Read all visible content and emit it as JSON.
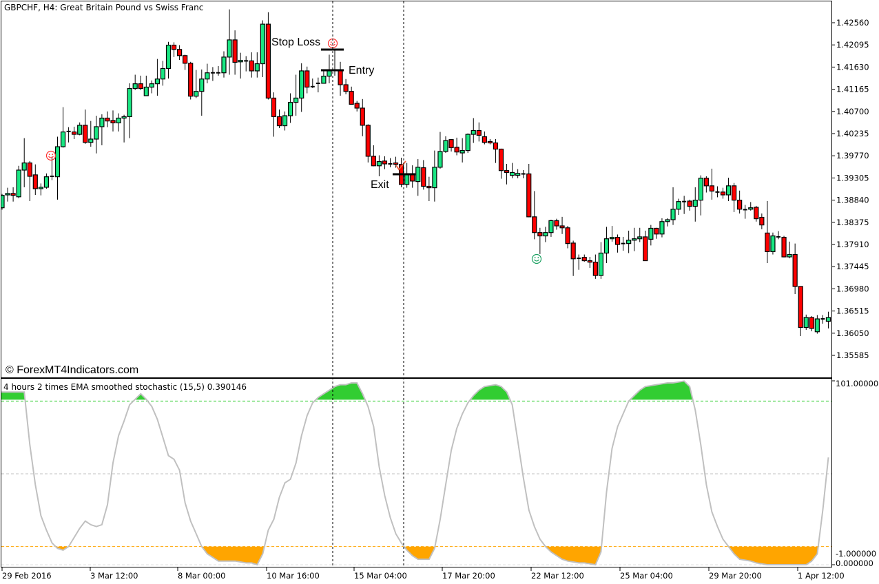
{
  "chart_data": [
    {
      "type": "candlestick",
      "title": "GBPCHF, H4:  Great Britain Pound vs Swiss Franc",
      "watermark": "© ForexMT4Indicators.com",
      "colors": {
        "bull": "#19e682",
        "bear": "#ff0000",
        "outline": "#000000"
      },
      "ylim": [
        1.3533,
        1.4304
      ],
      "y_ticks": [
        "1.42560",
        "1.42095",
        "1.41630",
        "1.41165",
        "1.40700",
        "1.40235",
        "1.39770",
        "1.39305",
        "1.38840",
        "1.38375",
        "1.37910",
        "1.37445",
        "1.36980",
        "1.36515",
        "1.36050",
        "1.35585"
      ],
      "x_ticks": [
        "29 Feb 2016",
        "3 Mar 12:00",
        "8 Mar 00:00",
        "10 Mar 16:00",
        "15 Mar 04:00",
        "17 Mar 20:00",
        "22 Mar 12:00",
        "25 Mar 04:00",
        "29 Mar 20:00",
        "1 Apr 12:00"
      ],
      "candle_fields": [
        "open",
        "high",
        "low",
        "close"
      ],
      "candles": [
        [
          1.3868,
          1.3897,
          1.3864,
          1.3894
        ],
        [
          1.3895,
          1.391,
          1.3881,
          1.3898
        ],
        [
          1.3898,
          1.3911,
          1.3881,
          1.3894
        ],
        [
          1.3891,
          1.3956,
          1.3888,
          1.3947
        ],
        [
          1.3947,
          1.4014,
          1.3911,
          1.3962
        ],
        [
          1.3962,
          1.3966,
          1.3882,
          1.3934
        ],
        [
          1.3937,
          1.3959,
          1.3895,
          1.3908
        ],
        [
          1.3908,
          1.3919,
          1.3894,
          1.3911
        ],
        [
          1.3911,
          1.394,
          1.3908,
          1.3933
        ],
        [
          1.3934,
          1.3975,
          1.3926,
          1.3934
        ],
        [
          1.3933,
          1.4017,
          1.3885,
          1.3996
        ],
        [
          1.3996,
          1.4079,
          1.3994,
          1.4027
        ],
        [
          1.4028,
          1.4037,
          1.4005,
          1.4028
        ],
        [
          1.4027,
          1.4038,
          1.4012,
          1.4022
        ],
        [
          1.4022,
          1.4047,
          1.402,
          1.4041
        ],
        [
          1.4041,
          1.4074,
          1.4002,
          1.4005
        ],
        [
          1.4005,
          1.405,
          1.3996,
          1.4012
        ],
        [
          1.4012,
          1.4061,
          1.3982,
          1.4038
        ],
        [
          1.4038,
          1.4064,
          1.3999,
          1.4056
        ],
        [
          1.4056,
          1.407,
          1.4037,
          1.405
        ],
        [
          1.4051,
          1.4072,
          1.4028,
          1.4046
        ],
        [
          1.4046,
          1.4066,
          1.4028,
          1.4056
        ],
        [
          1.4056,
          1.4063,
          1.4005,
          1.4059
        ],
        [
          1.4059,
          1.4129,
          1.4014,
          1.4118
        ],
        [
          1.4118,
          1.4147,
          1.4115,
          1.4128
        ],
        [
          1.4128,
          1.4145,
          1.4115,
          1.4118
        ],
        [
          1.4103,
          1.4145,
          1.4103,
          1.4121
        ],
        [
          1.4121,
          1.4135,
          1.4108,
          1.4128
        ],
        [
          1.4128,
          1.418,
          1.4103,
          1.4138
        ],
        [
          1.4138,
          1.4176,
          1.4124,
          1.416
        ],
        [
          1.416,
          1.4216,
          1.4139,
          1.4209
        ],
        [
          1.4209,
          1.4215,
          1.4184,
          1.42
        ],
        [
          1.42,
          1.4209,
          1.4178,
          1.4187
        ],
        [
          1.4187,
          1.4189,
          1.4157,
          1.4171
        ],
        [
          1.4171,
          1.4174,
          1.4095,
          1.4102
        ],
        [
          1.4102,
          1.4157,
          1.4098,
          1.4112
        ],
        [
          1.4112,
          1.4158,
          1.4061,
          1.4138
        ],
        [
          1.4138,
          1.417,
          1.4129,
          1.4151
        ],
        [
          1.4151,
          1.4163,
          1.4134,
          1.4151
        ],
        [
          1.4151,
          1.4165,
          1.4145,
          1.4151
        ],
        [
          1.4151,
          1.4196,
          1.4141,
          1.4184
        ],
        [
          1.4184,
          1.4284,
          1.4147,
          1.422
        ],
        [
          1.422,
          1.424,
          1.4147,
          1.4173
        ],
        [
          1.4174,
          1.4193,
          1.4139,
          1.4177
        ],
        [
          1.4176,
          1.4186,
          1.4154,
          1.4176
        ],
        [
          1.4176,
          1.4194,
          1.4141,
          1.4155
        ],
        [
          1.4155,
          1.4194,
          1.4141,
          1.417
        ],
        [
          1.417,
          1.4261,
          1.4142,
          1.4253
        ],
        [
          1.4253,
          1.4278,
          1.4095,
          1.4098
        ],
        [
          1.4098,
          1.411,
          1.4017,
          1.4059
        ],
        [
          1.4059,
          1.4074,
          1.4035,
          1.404
        ],
        [
          1.404,
          1.407,
          1.403,
          1.4061
        ],
        [
          1.4061,
          1.4108,
          1.4046,
          1.4089
        ],
        [
          1.4089,
          1.4147,
          1.4061,
          1.4098
        ],
        [
          1.4098,
          1.4171,
          1.4069,
          1.4155
        ],
        [
          1.4155,
          1.4164,
          1.4108,
          1.4121
        ],
        [
          1.4122,
          1.4139,
          1.4119,
          1.4122
        ],
        [
          1.4129,
          1.4141,
          1.411,
          1.4129
        ],
        [
          1.4129,
          1.4157,
          1.4129,
          1.4144
        ],
        [
          1.4144,
          1.4189,
          1.4129,
          1.4155
        ],
        [
          1.4157,
          1.42,
          1.4145,
          1.4157
        ],
        [
          1.4157,
          1.4174,
          1.4103,
          1.4126
        ],
        [
          1.4126,
          1.4138,
          1.4106,
          1.4112
        ],
        [
          1.4112,
          1.4122,
          1.4085,
          1.4085
        ],
        [
          1.4087,
          1.4092,
          1.407,
          1.4077
        ],
        [
          1.4077,
          1.4096,
          1.4018,
          1.4041
        ],
        [
          1.4041,
          1.4043,
          1.3963,
          1.3976
        ],
        [
          1.3976,
          1.3999,
          1.3955,
          1.3956
        ],
        [
          1.3956,
          1.3978,
          1.3934,
          1.3965
        ],
        [
          1.3966,
          1.3976,
          1.3949,
          1.396
        ],
        [
          1.396,
          1.3972,
          1.3953,
          1.396
        ],
        [
          1.3962,
          1.3975,
          1.3952,
          1.3959
        ],
        [
          1.3959,
          1.3973,
          1.3911,
          1.3917
        ],
        [
          1.3917,
          1.3962,
          1.391,
          1.3939
        ],
        [
          1.3937,
          1.3957,
          1.391,
          1.3924
        ],
        [
          1.3923,
          1.397,
          1.3893,
          1.3953
        ],
        [
          1.3952,
          1.3968,
          1.3906,
          1.3913
        ],
        [
          1.3913,
          1.3933,
          1.3882,
          1.391
        ],
        [
          1.391,
          1.3988,
          1.3881,
          1.3953
        ],
        [
          1.3953,
          1.4027,
          1.395,
          1.3986
        ],
        [
          1.3986,
          1.4018,
          1.3983,
          1.4009
        ],
        [
          1.4011,
          1.4012,
          1.3986,
          1.3994
        ],
        [
          1.3995,
          1.4015,
          1.3978,
          1.3985
        ],
        [
          1.3983,
          1.4014,
          1.3963,
          1.3988
        ],
        [
          1.3988,
          1.4024,
          1.3983,
          1.4022
        ],
        [
          1.4022,
          1.4056,
          1.4004,
          1.403
        ],
        [
          1.403,
          1.4047,
          1.4007,
          1.402
        ],
        [
          1.4017,
          1.4028,
          1.4001,
          1.4005
        ],
        [
          1.4007,
          1.4012,
          1.4001,
          1.4004
        ],
        [
          1.4004,
          1.4012,
          1.3962,
          1.3991
        ],
        [
          1.3991,
          1.3992,
          1.3929,
          1.3946
        ],
        [
          1.3946,
          1.396,
          1.3917,
          1.3942
        ],
        [
          1.3936,
          1.3962,
          1.393,
          1.3942
        ],
        [
          1.3936,
          1.3949,
          1.393,
          1.394
        ],
        [
          1.3939,
          1.3947,
          1.393,
          1.3939
        ],
        [
          1.3939,
          1.396,
          1.3848,
          1.3849
        ],
        [
          1.3849,
          1.3903,
          1.3802,
          1.3816
        ],
        [
          1.3816,
          1.3826,
          1.3771,
          1.3809
        ],
        [
          1.3809,
          1.3828,
          1.3796,
          1.3816
        ],
        [
          1.3816,
          1.3843,
          1.3807,
          1.3841
        ],
        [
          1.3841,
          1.3845,
          1.3822,
          1.383
        ],
        [
          1.383,
          1.3849,
          1.3813,
          1.3826
        ],
        [
          1.3826,
          1.383,
          1.3783,
          1.3793
        ],
        [
          1.3794,
          1.3799,
          1.3725,
          1.3761
        ],
        [
          1.3762,
          1.377,
          1.3738,
          1.3762
        ],
        [
          1.3764,
          1.377,
          1.3755,
          1.3757
        ],
        [
          1.3757,
          1.3765,
          1.3742,
          1.3754
        ],
        [
          1.3754,
          1.377,
          1.3719,
          1.3726
        ],
        [
          1.3726,
          1.3796,
          1.3719,
          1.3773
        ],
        [
          1.3773,
          1.3828,
          1.3752,
          1.3803
        ],
        [
          1.3803,
          1.383,
          1.3797,
          1.3806
        ],
        [
          1.3806,
          1.3812,
          1.3774,
          1.3791
        ],
        [
          1.3793,
          1.3807,
          1.3778,
          1.3793
        ],
        [
          1.3793,
          1.382,
          1.3773,
          1.38
        ],
        [
          1.38,
          1.3826,
          1.3777,
          1.3803
        ],
        [
          1.3803,
          1.3826,
          1.3796,
          1.3807
        ],
        [
          1.3807,
          1.382,
          1.3757,
          1.3757
        ],
        [
          1.3802,
          1.3832,
          1.3789,
          1.3825
        ],
        [
          1.3825,
          1.3826,
          1.3803,
          1.3813
        ],
        [
          1.3813,
          1.3846,
          1.3806,
          1.3839
        ],
        [
          1.3839,
          1.3846,
          1.3829,
          1.3843
        ],
        [
          1.3843,
          1.3911,
          1.3832,
          1.3865
        ],
        [
          1.3865,
          1.3887,
          1.3853,
          1.3881
        ],
        [
          1.3881,
          1.3893,
          1.3855,
          1.3881
        ],
        [
          1.3882,
          1.3885,
          1.3862,
          1.3871
        ],
        [
          1.3871,
          1.3911,
          1.3839,
          1.3884
        ],
        [
          1.3884,
          1.3936,
          1.3852,
          1.393
        ],
        [
          1.393,
          1.3934,
          1.39,
          1.3914
        ],
        [
          1.3914,
          1.395,
          1.3885,
          1.3903
        ],
        [
          1.3901,
          1.3913,
          1.389,
          1.3901
        ],
        [
          1.3901,
          1.391,
          1.3887,
          1.3895
        ],
        [
          1.3895,
          1.3931,
          1.3882,
          1.3914
        ],
        [
          1.3914,
          1.392,
          1.3859,
          1.3884
        ],
        [
          1.3884,
          1.3904,
          1.3856,
          1.3865
        ],
        [
          1.3864,
          1.3874,
          1.3845,
          1.3864
        ],
        [
          1.3865,
          1.388,
          1.3862,
          1.3868
        ],
        [
          1.3869,
          1.3872,
          1.3839,
          1.3845
        ],
        [
          1.3848,
          1.3856,
          1.3823,
          1.3832
        ],
        [
          1.3815,
          1.3882,
          1.3752,
          1.3776
        ],
        [
          1.3776,
          1.3816,
          1.377,
          1.3809
        ],
        [
          1.3807,
          1.3819,
          1.3802,
          1.3807
        ],
        [
          1.3806,
          1.3809,
          1.3764,
          1.3765
        ],
        [
          1.3765,
          1.3797,
          1.3762,
          1.377
        ],
        [
          1.377,
          1.3793,
          1.3687,
          1.3703
        ],
        [
          1.3703,
          1.3703,
          1.3599,
          1.3617
        ],
        [
          1.3617,
          1.3644,
          1.3612,
          1.3638
        ],
        [
          1.3638,
          1.3641,
          1.3609,
          1.3615
        ],
        [
          1.3608,
          1.3643,
          1.3604,
          1.3635
        ],
        [
          1.3635,
          1.3643,
          1.3625,
          1.3633
        ],
        [
          1.363,
          1.365,
          1.3615,
          1.3638
        ]
      ],
      "annotations": {
        "stop_loss": {
          "label": "Stop Loss",
          "price": 1.42
        },
        "entry": {
          "label": "Entry",
          "price": 1.4157
        },
        "exit": {
          "label": "Exit",
          "price": 1.3938
        }
      },
      "markers": [
        "smiley-red",
        "smiley-red",
        "smiley-green",
        "check-red"
      ]
    },
    {
      "type": "line",
      "title": "4 hours 2 times EMA smoothed stochastic (15,5) 0.390146",
      "ylim": [
        -1,
        101
      ],
      "y_tick_labels": [
        "101.000000",
        "-1.000000",
        "0.000000"
      ],
      "levels": [
        {
          "value": 90,
          "color": "#32cd32"
        },
        {
          "value": 50,
          "color": "#c0c0c0"
        },
        {
          "value": 10,
          "color": "#ffa500"
        }
      ],
      "line_color": "#c0c0c0",
      "fill_above_color": "#32cd32",
      "fill_below_color": "#ffa500",
      "values": [
        95,
        95,
        95,
        95,
        95,
        66,
        44,
        27,
        19,
        12,
        9,
        8,
        10,
        15,
        20,
        24,
        22,
        21,
        22,
        33,
        56,
        71,
        79,
        88,
        91,
        94,
        91,
        87,
        80,
        70,
        60,
        58,
        52,
        34,
        24,
        17,
        10,
        6,
        4,
        2,
        2,
        2,
        2,
        1.5,
        1,
        1,
        0,
        6,
        19,
        25,
        37,
        45,
        47,
        56,
        71,
        82,
        89,
        92,
        94,
        96,
        98,
        99,
        99,
        100,
        100,
        94,
        87,
        76,
        54,
        38,
        26,
        17,
        12,
        8,
        5,
        3,
        3,
        3,
        9,
        25,
        44,
        63,
        75,
        83,
        89,
        93,
        96,
        98,
        98.5,
        99,
        98,
        95,
        88,
        68,
        48,
        30,
        21,
        14,
        10,
        7,
        5,
        3,
        2,
        1.5,
        1,
        1,
        0.5,
        0,
        7,
        40,
        64,
        76,
        83,
        90,
        93,
        96,
        98,
        98.5,
        99,
        99.5,
        100,
        100,
        100.5,
        101,
        98,
        85,
        66,
        44,
        29,
        21,
        14,
        10,
        6,
        3,
        2.5,
        2,
        1,
        0.5,
        0,
        0,
        0,
        0,
        0,
        0,
        0,
        0,
        2,
        6,
        30,
        59
      ]
    }
  ]
}
